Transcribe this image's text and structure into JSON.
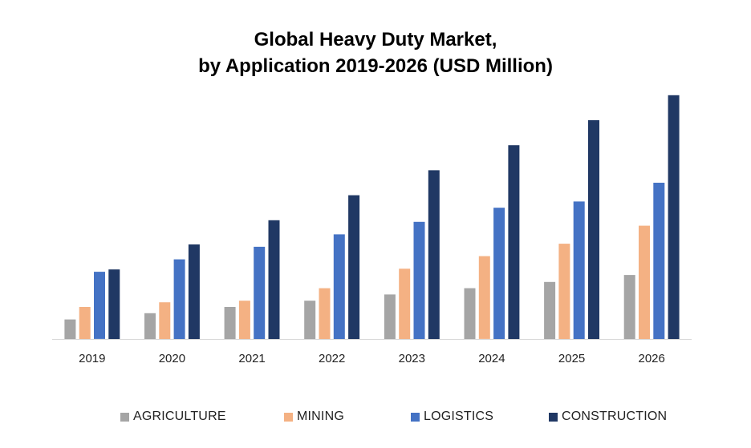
{
  "title_line1": "Global Heavy Duty Market,",
  "title_line2": "by Application 2019-2026 (USD Million)",
  "chart_data": {
    "type": "bar",
    "categories": [
      "2019",
      "2020",
      "2021",
      "2022",
      "2023",
      "2024",
      "2025",
      "2026"
    ],
    "series": [
      {
        "name": "AGRICULTURE",
        "color": "#a5a5a5",
        "values": [
          25,
          33,
          41,
          49,
          57,
          65,
          73,
          82
        ]
      },
      {
        "name": "MINING",
        "color": "#f4b183",
        "values": [
          41,
          47,
          49,
          65,
          90,
          106,
          122,
          145
        ]
      },
      {
        "name": "LOGISTICS",
        "color": "#4472c4",
        "values": [
          86,
          102,
          118,
          134,
          150,
          168,
          176,
          200
        ]
      },
      {
        "name": "CONSTRUCTION",
        "color": "#203864",
        "values": [
          89,
          121,
          152,
          184,
          216,
          248,
          280,
          312
        ]
      }
    ],
    "ylim": [
      0,
      320
    ],
    "grid": false,
    "legend_position": "bottom",
    "xlabel": "",
    "ylabel": ""
  }
}
